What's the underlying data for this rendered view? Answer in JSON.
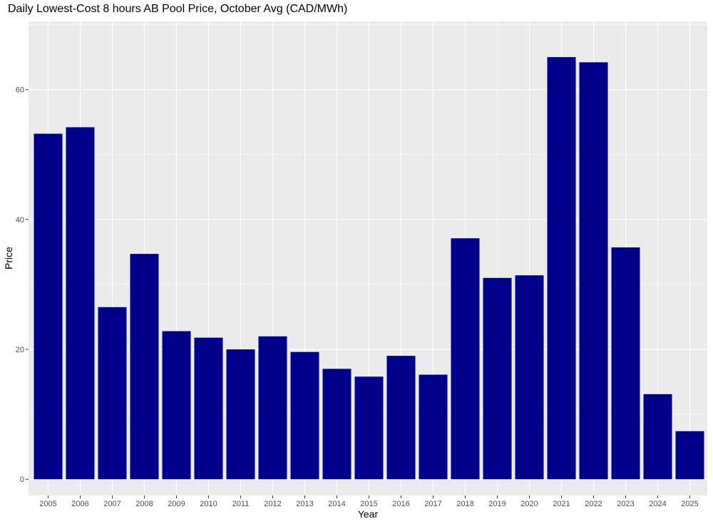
{
  "chart_data": {
    "type": "bar",
    "title": "Daily Lowest-Cost 8 hours AB Pool Price, October Avg (CAD/MWh)",
    "xlabel": "Year",
    "ylabel": "Price",
    "categories": [
      "2005",
      "2006",
      "2007",
      "2008",
      "2009",
      "2010",
      "2011",
      "2012",
      "2013",
      "2014",
      "2015",
      "2016",
      "2017",
      "2018",
      "2019",
      "2020",
      "2021",
      "2022",
      "2023",
      "2024",
      "2025"
    ],
    "values": [
      53.2,
      54.2,
      26.5,
      34.7,
      22.8,
      21.8,
      20.0,
      22.0,
      19.6,
      17.0,
      15.8,
      19.0,
      16.1,
      37.1,
      31.0,
      31.4,
      65.0,
      64.2,
      35.7,
      13.1,
      7.4
    ],
    "ylim": [
      -2.5,
      70.5
    ],
    "yticks": [
      0,
      20,
      40,
      60
    ],
    "grid": true,
    "colors": {
      "bar": "#00008B",
      "panel": "#EBEBEB",
      "grid": "#FFFFFF"
    }
  }
}
